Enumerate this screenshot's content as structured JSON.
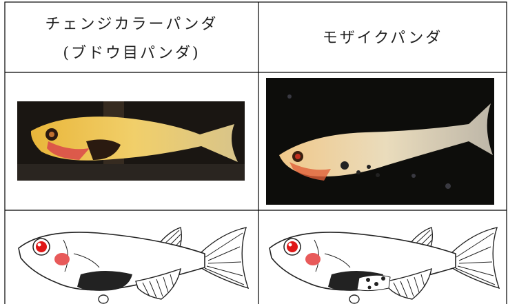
{
  "table": {
    "columns": [
      {
        "title_lines": [
          "チェンジカラーパンダ",
          "(ブドウ目パンダ)"
        ]
      },
      {
        "title_lines": [
          "モザイクパンダ"
        ]
      }
    ]
  }
}
